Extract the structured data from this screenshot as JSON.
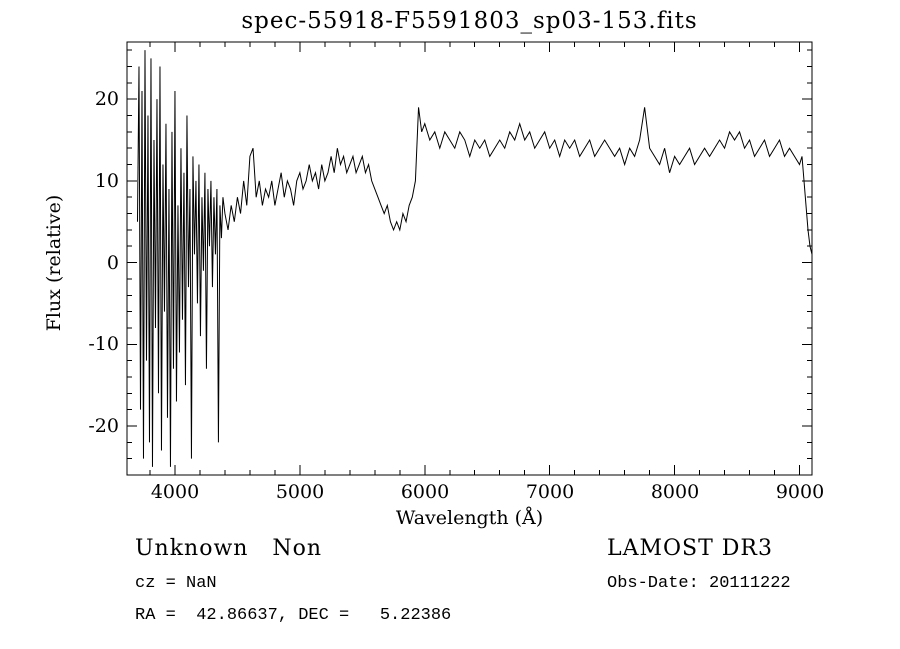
{
  "page": {
    "background": "#ffffff",
    "foreground": "#000000"
  },
  "chart_data": {
    "type": "line",
    "title": "spec-55918-F5591803_sp03-153.fits",
    "xlabel": "Wavelength (Å)",
    "ylabel": "Flux (relative)",
    "xlim": [
      3616,
      9100
    ],
    "ylim": [
      -26,
      27
    ],
    "x_ticks": [
      4000,
      5000,
      6000,
      7000,
      8000,
      9000
    ],
    "x_tick_labels": [
      "4000",
      "5000",
      "6000",
      "7000",
      "8000",
      "9000"
    ],
    "y_ticks": [
      20,
      10,
      0,
      -10,
      -20
    ],
    "y_tick_labels": [
      "20",
      "10",
      "0",
      "-10",
      "-20"
    ],
    "x_minor_step": 200,
    "y_minor_step": 2,
    "grid": false,
    "legend": "none",
    "line_color": "#000000",
    "series": [
      {
        "name": "flux",
        "segments": [
          {
            "x0": 3700,
            "dx": 12,
            "y": [
              5,
              24,
              -18,
              21,
              -24,
              26,
              -12,
              18,
              -22,
              25,
              -25,
              15,
              -8,
              20,
              -16,
              24,
              -23,
              12,
              -6,
              17,
              -19,
              9,
              -25,
              16,
              -13,
              21,
              -17,
              7,
              -11,
              14,
              -7,
              11,
              -15,
              18,
              -3,
              9,
              -24,
              13,
              1,
              10,
              -5,
              12,
              -9,
              8,
              -1,
              11,
              -13,
              9,
              2,
              10,
              -3,
              8,
              1,
              9,
              -22,
              7,
              3,
              8
            ]
          },
          {
            "x0": 4400,
            "dx": 25,
            "y": [
              6,
              4,
              7,
              5,
              8,
              6,
              10,
              7,
              13,
              14,
              8,
              10,
              7,
              9,
              8,
              10,
              7,
              9,
              11,
              8,
              10,
              9,
              7,
              10,
              11,
              9,
              10,
              12,
              10,
              11,
              9,
              12,
              10,
              11,
              13,
              11,
              14,
              12,
              13,
              11,
              12,
              13,
              11,
              12,
              13
            ]
          },
          {
            "x0": 5525,
            "dx": 25,
            "y": [
              11,
              12,
              10,
              9,
              8,
              7,
              6,
              7,
              5,
              4,
              5,
              4,
              6,
              5,
              7,
              8,
              10,
              19,
              16
            ]
          },
          {
            "x0": 6000,
            "dx": 40,
            "y": [
              17,
              15,
              16,
              14,
              16,
              15,
              14,
              16,
              15,
              13,
              15,
              14,
              15,
              13,
              14,
              15,
              14,
              16,
              15,
              17,
              15,
              16,
              14,
              15,
              16,
              14,
              15,
              13,
              15,
              14,
              15,
              13,
              14,
              15,
              13,
              14,
              15,
              14,
              13,
              14,
              12,
              14,
              13,
              15,
              19,
              14,
              13,
              12,
              14,
              11,
              13,
              12,
              13,
              14,
              12,
              13,
              14,
              13,
              14,
              15,
              14,
              16,
              15,
              16,
              14,
              15,
              13,
              14,
              15,
              13,
              14,
              15,
              13,
              14,
              13,
              12
            ]
          },
          {
            "x0": 9020,
            "dx": 16,
            "y": [
              13,
              10,
              7,
              4,
              2,
              1
            ]
          }
        ]
      }
    ]
  },
  "annotations": {
    "class_label": "Unknown   Non",
    "survey": "LAMOST DR3",
    "cz": "cz = NaN",
    "obs_date": "Obs-Date: 20111222",
    "coords": "RA =  42.86637, DEC =   5.22386"
  }
}
